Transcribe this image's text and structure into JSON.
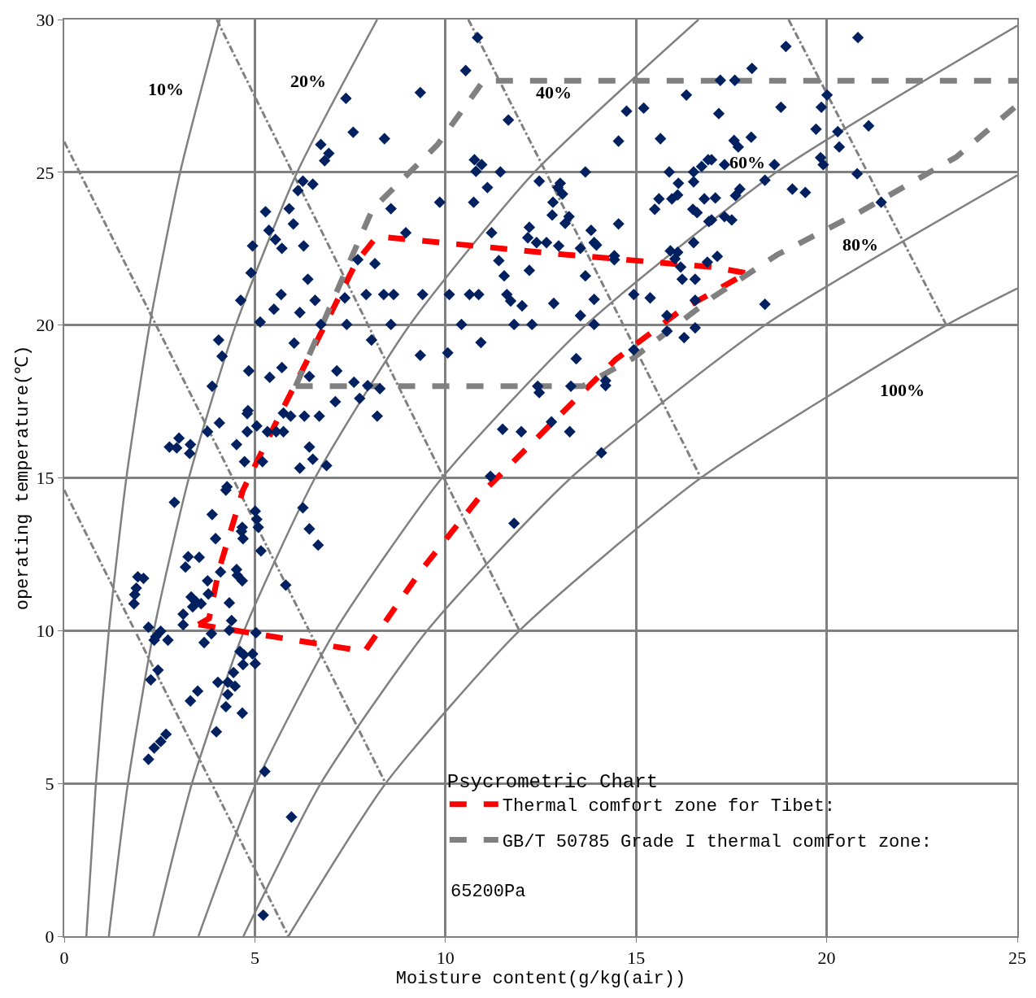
{
  "chart_data": {
    "type": "scatter",
    "xlabel": "Moisture content(g/kg(air))",
    "ylabel": "operating temperature(℃)",
    "legend_title": "Psycrometric Chart",
    "legend": "bottom right",
    "grid": true,
    "xlim": [
      0,
      25
    ],
    "ylim": [
      0,
      30
    ],
    "xticks": [
      0,
      5,
      10,
      15,
      20,
      25
    ],
    "yticks": [
      0,
      5,
      10,
      15,
      20,
      25,
      30
    ],
    "annotations": [
      "10%",
      "20%",
      "40%",
      "60%",
      "80%",
      "100%",
      "65200Pa"
    ],
    "series": [
      {
        "type": "line",
        "color": "#808080",
        "line_style": "solid",
        "x": [
          0.58,
          0.83,
          1.17,
          1.63,
          2.24,
          3.04,
          4.08
        ],
        "values": [
          0,
          5,
          10,
          15,
          20,
          25,
          30
        ]
      },
      {
        "type": "line",
        "color": "#808080",
        "line_style": "solid",
        "x": [
          1.17,
          1.67,
          2.35,
          3.27,
          4.5,
          6.11,
          8.21
        ],
        "values": [
          0,
          5,
          10,
          15,
          20,
          25,
          30
        ]
      },
      {
        "type": "line",
        "color": "#808080",
        "line_style": "solid",
        "x": [
          2.34,
          3.35,
          4.72,
          6.58,
          9.06,
          12.33,
          16.64
        ],
        "values": [
          0,
          5,
          10,
          15,
          20,
          25,
          30
        ]
      },
      {
        "type": "line",
        "color": "#808080",
        "line_style": "solid",
        "x": [
          3.52,
          5.03,
          7.11,
          9.91,
          13.68,
          18.68,
          25
        ],
        "values": [
          0,
          5,
          10,
          15,
          20,
          25,
          29.8
        ]
      },
      {
        "type": "line",
        "color": "#808080",
        "line_style": "solid",
        "x": [
          4.7,
          6.73,
          9.52,
          13.29,
          18.38,
          25
        ],
        "values": [
          0,
          5,
          10,
          15,
          20,
          24.9
        ]
      },
      {
        "type": "line",
        "color": "#808080",
        "line_style": "solid",
        "x": [
          5.88,
          8.43,
          11.94,
          16.7,
          23.14,
          25
        ],
        "values": [
          0,
          5,
          10,
          15,
          20,
          21.2
        ]
      },
      {
        "type": "line",
        "color": "#808080",
        "line_style": "dashdot",
        "x": [
          0,
          5.88
        ],
        "values": [
          14.6,
          0
        ]
      },
      {
        "type": "line",
        "color": "#808080",
        "line_style": "dashdot",
        "x": [
          0,
          8.43
        ],
        "values": [
          26.0,
          5
        ]
      },
      {
        "type": "line",
        "color": "#808080",
        "line_style": "dashdot",
        "x": [
          4.0,
          11.94
        ],
        "values": [
          30,
          10
        ]
      },
      {
        "type": "line",
        "color": "#808080",
        "line_style": "dashdot",
        "x": [
          10.6,
          16.7
        ],
        "values": [
          30,
          15
        ]
      },
      {
        "type": "line",
        "color": "#808080",
        "line_style": "dashdot",
        "x": [
          19.0,
          23.14
        ],
        "values": [
          30,
          20
        ]
      },
      {
        "type": "line",
        "name": "Thermal comfort zone for Tibet:",
        "color": "#ff0000",
        "line_style": "dashed",
        "x": [
          3.52,
          7.88,
          9.36,
          11.06,
          12.76,
          14.46,
          16.16,
          17.9
        ],
        "values": [
          10.2,
          9.32,
          11.97,
          14.63,
          16.75,
          18.87,
          20.47,
          21.7
        ]
      },
      {
        "type": "line",
        "color": "#ff0000",
        "line_style": "dashed",
        "x": [
          3.52,
          3.8,
          4.06,
          4.69,
          5.75,
          6.8,
          7.66,
          8.2,
          13.2,
          17.0,
          17.9
        ],
        "values": [
          10.2,
          10.4,
          12.0,
          14.6,
          17.3,
          19.9,
          22.06,
          22.9,
          22.3,
          21.9,
          21.7
        ]
      },
      {
        "type": "line",
        "name": "GB/T 50785 Grade I thermal comfort zone:",
        "color": "#808080",
        "line_style": "dashed",
        "x": [
          6.07,
          8.09,
          9.79,
          11.0,
          25
        ],
        "values": [
          18.0,
          23.8,
          25.9,
          28.0,
          28.0
        ]
      },
      {
        "type": "line",
        "color": "#808080",
        "line_style": "dashed",
        "x": [
          6.07,
          13.6,
          14.9,
          17.0,
          18.7,
          20.8,
          23.4,
          25
        ],
        "values": [
          18.0,
          18.0,
          18.9,
          20.9,
          22.3,
          23.65,
          25.5,
          27.2
        ]
      },
      {
        "color": "#002060",
        "marker": "diamond",
        "x": [
          10.84,
          20.82,
          18.93,
          10.53,
          18.04,
          17.21,
          17.59,
          7.39,
          9.34,
          11.65,
          16.32,
          15.2,
          18.8,
          14.75,
          17.17,
          20.01,
          19.86,
          21.1,
          20.29,
          20.33,
          19.72,
          7.58,
          6.73,
          6.94,
          6.83,
          8.4,
          14.54,
          15.64,
          17.57,
          18.02,
          17.68,
          19.84,
          19.91,
          18.63,
          17.32,
          16.98,
          20.8,
          18.38,
          19.1,
          19.44,
          21.43,
          17.72,
          17.61,
          17.08,
          17.32,
          17.51,
          16.98,
          17.13,
          18.38,
          6.26,
          6.52,
          6.13,
          5.28,
          5.9,
          6.01,
          5.37,
          5.54,
          5.71,
          6.28,
          4.94,
          4.9,
          6.39,
          5.69,
          6.58,
          8.15,
          7.7,
          7.92,
          8.38,
          7.36,
          4.63,
          5.5,
          6.18,
          5.14,
          6.73,
          7.41,
          4.05,
          4.14,
          6.03,
          8.06,
          4.84,
          5.71,
          5.39,
          6.43,
          7.15,
          3.88,
          7.6,
          7.96,
          8.28,
          7.75,
          7.11,
          4.82,
          4.8,
          5.75,
          5.94,
          6.3,
          6.69,
          8.21,
          4.07,
          5.05,
          3.76,
          4.8,
          5.33,
          5.56,
          5.75,
          3.01,
          3.31,
          2.76,
          2.95,
          3.29,
          4.52,
          6.43,
          6.52,
          4.73,
          5.2,
          6.18,
          6.88,
          10.76,
          10.95,
          10.8,
          11.44,
          13.67,
          12.46,
          13.01,
          12.95,
          13.07,
          11.1,
          9.85,
          10.74,
          8.57,
          12.82,
          12.8,
          13.24,
          13.14,
          12.2,
          12.16,
          12.39,
          12.65,
          12.97,
          13.82,
          13.9,
          13.96,
          14.54,
          13.54,
          14.43,
          14.43,
          8.96,
          11.21,
          11.4,
          11.54,
          12.2,
          13.67,
          8.64,
          9.4,
          10.1,
          10.63,
          10.87,
          11.61,
          11.71,
          12.01,
          12.84,
          13.9,
          13.54,
          13.9,
          14.94,
          15.37,
          15.81,
          16.55,
          8.57,
          10.42,
          11.8,
          12.27,
          10.93,
          9.34,
          10.06,
          13.43,
          14.94,
          15.81,
          16.26,
          16.55,
          12.42,
          12.46,
          13.29,
          14.2,
          14.2,
          12.78,
          13.26,
          11.5,
          11.99,
          14.09,
          11.18,
          15.87,
          16.11,
          16.51,
          16.72,
          16.89,
          16.51,
          15.6,
          15.49,
          15.94,
          16.09,
          16.79,
          16.49,
          16.6,
          16.91,
          15.9,
          16.09,
          16.02,
          16.17,
          16.51,
          16.21,
          16.55,
          16.87,
          4.27,
          4.24,
          2.89,
          3.88,
          6.26,
          5.01,
          5.05,
          5.09,
          4.67,
          4.65,
          4.69,
          3.97,
          6.43,
          6.66,
          5.16,
          3.25,
          3.54,
          3.18,
          4.52,
          4.54,
          4.67,
          4.1,
          3.76,
          5.81,
          1.93,
          2.08,
          1.89,
          1.85,
          1.83,
          3.78,
          3.33,
          3.46,
          3.37,
          3.59,
          4.33,
          3.12,
          3.12,
          4.39,
          4.33,
          2.21,
          2.53,
          2.4,
          2.36,
          2.72,
          3.86,
          3.67,
          5.03,
          4.61,
          4.71,
          4.94,
          4.69,
          5.01,
          2.46,
          2.27,
          4.44,
          4.03,
          4.29,
          4.48,
          4.29,
          3.5,
          3.31,
          4.24,
          4.67,
          3.99,
          2.67,
          2.53,
          2.36,
          2.21,
          5.26,
          5.96,
          5.22,
          11.8
        ],
        "values": [
          29.41,
          29.41,
          29.12,
          28.33,
          28.4,
          28.01,
          28.01,
          27.42,
          27.61,
          26.71,
          27.53,
          27.1,
          27.13,
          27.0,
          26.92,
          27.53,
          27.13,
          26.52,
          26.33,
          25.83,
          26.41,
          26.31,
          25.91,
          25.62,
          25.38,
          26.1,
          26.02,
          26.1,
          26.04,
          26.15,
          25.83,
          25.48,
          25.25,
          25.25,
          25.25,
          25.41,
          24.95,
          24.74,
          24.45,
          24.34,
          24.02,
          24.45,
          24.24,
          24.16,
          23.55,
          23.44,
          23.44,
          22.25,
          20.68,
          24.71,
          24.61,
          24.4,
          23.71,
          23.81,
          23.31,
          23.1,
          22.8,
          22.51,
          22.59,
          22.59,
          21.71,
          21.5,
          21.0,
          20.81,
          22.01,
          22.14,
          21.0,
          21.0,
          20.89,
          20.81,
          20.52,
          20.41,
          20.1,
          20.02,
          20.02,
          19.51,
          18.98,
          19.41,
          19.51,
          18.5,
          18.61,
          18.29,
          18.32,
          18.5,
          18.0,
          18.13,
          18.02,
          17.92,
          17.6,
          17.49,
          17.2,
          17.1,
          17.12,
          17.02,
          17.02,
          17.02,
          17.02,
          16.8,
          16.7,
          16.51,
          16.51,
          16.51,
          16.51,
          16.51,
          16.3,
          16.09,
          16.01,
          15.98,
          15.8,
          16.09,
          16.01,
          15.61,
          15.53,
          15.53,
          15.32,
          15.4,
          25.41,
          25.25,
          25.03,
          25.01,
          25.01,
          24.71,
          24.64,
          24.5,
          24.29,
          24.5,
          24.02,
          24.02,
          23.81,
          24.02,
          23.6,
          23.55,
          23.33,
          23.2,
          22.86,
          22.7,
          22.7,
          22.59,
          23.1,
          22.7,
          22.62,
          23.31,
          22.51,
          22.27,
          22.14,
          23.02,
          23.02,
          22.11,
          21.61,
          21.79,
          21.61,
          21.0,
          21.0,
          21.0,
          21.0,
          21.0,
          21.0,
          20.79,
          20.63,
          20.71,
          20.84,
          20.31,
          20.02,
          21.0,
          20.89,
          20.31,
          20.81,
          20.02,
          20.02,
          20.02,
          20.02,
          19.43,
          19.01,
          19.09,
          18.9,
          19.19,
          19.8,
          19.59,
          19.91,
          18.0,
          17.79,
          18.0,
          18.02,
          18.18,
          16.83,
          16.51,
          16.59,
          16.51,
          15.82,
          15.05,
          25.01,
          24.64,
          25.01,
          25.19,
          25.41,
          24.69,
          24.13,
          23.79,
          24.13,
          24.26,
          24.13,
          23.79,
          23.68,
          23.39,
          22.43,
          22.38,
          22.17,
          21.9,
          22.7,
          21.5,
          21.5,
          22.06,
          14.71,
          14.6,
          14.2,
          13.8,
          14.02,
          13.91,
          13.64,
          13.38,
          13.38,
          13.25,
          13.01,
          13.01,
          13.33,
          12.8,
          12.61,
          12.42,
          12.4,
          12.08,
          12.0,
          11.81,
          11.63,
          11.92,
          11.63,
          11.49,
          11.76,
          11.71,
          11.39,
          11.18,
          10.88,
          11.2,
          11.1,
          10.94,
          10.78,
          10.88,
          10.91,
          10.54,
          10.19,
          10.33,
          10.01,
          10.11,
          9.98,
          9.8,
          9.69,
          9.69,
          9.9,
          9.61,
          9.93,
          9.32,
          9.21,
          9.24,
          8.89,
          8.92,
          8.71,
          8.39,
          8.63,
          8.31,
          8.31,
          8.18,
          7.91,
          8.02,
          7.7,
          7.51,
          7.3,
          6.69,
          6.61,
          6.37,
          6.16,
          5.79,
          5.39,
          3.9,
          0.69,
          13.51
        ]
      }
    ]
  }
}
